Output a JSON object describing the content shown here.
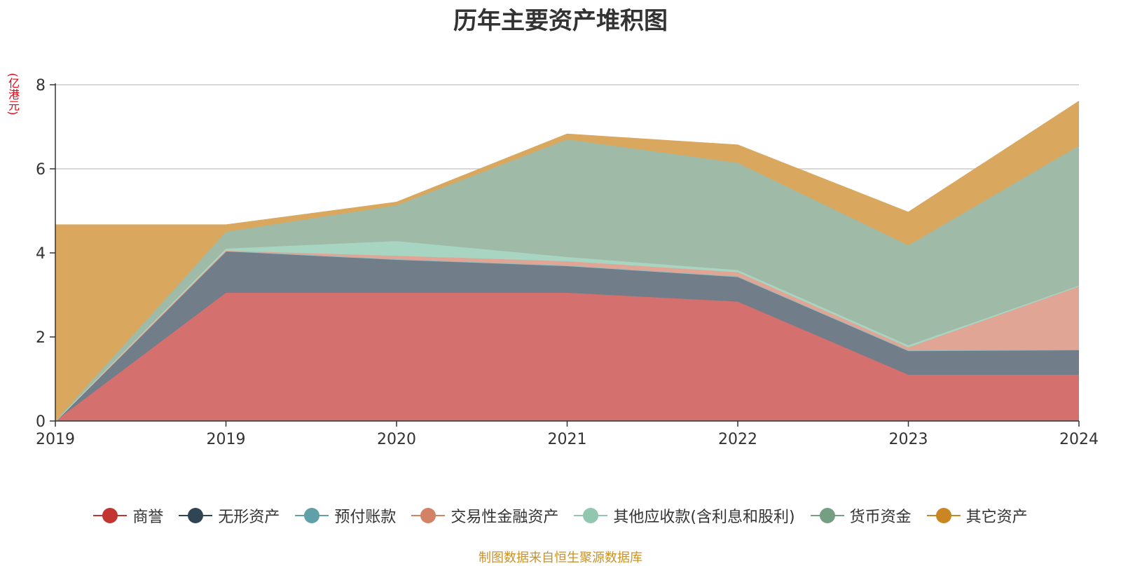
{
  "chart_data": {
    "type": "area",
    "stacked": true,
    "title": "历年主要资产堆积图",
    "y_unit": "(亿港元)",
    "x": [
      "2019",
      "2019",
      "2020",
      "2021",
      "2022",
      "2023",
      "2024"
    ],
    "ylim": [
      0,
      8
    ],
    "yticks": [
      "0",
      "2",
      "4",
      "6",
      "8"
    ],
    "grid": true,
    "legend_position": "bottom",
    "series": [
      {
        "name": "商誉",
        "color": "#c23531",
        "fill": "#d4706e",
        "values": [
          0,
          3.05,
          3.05,
          3.05,
          2.84,
          1.1,
          1.1
        ]
      },
      {
        "name": "无形资产",
        "color": "#2f4554",
        "fill": "#717d88",
        "values": [
          0,
          1.0,
          0.8,
          0.65,
          0.6,
          0.58,
          0.6
        ]
      },
      {
        "name": "预付账款",
        "color": "#61a0a8",
        "fill": "#8fbcc2",
        "values": [
          0,
          0,
          0,
          0,
          0,
          0,
          0
        ]
      },
      {
        "name": "交易性金融资产",
        "color": "#d48265",
        "fill": "#e0a594",
        "values": [
          0,
          0,
          0.08,
          0.1,
          0.1,
          0.07,
          1.5
        ]
      },
      {
        "name": "其他应收款(含利息和股利)",
        "color": "#91c7ae",
        "fill": "#a8d4c2",
        "values": [
          0,
          0.05,
          0.35,
          0.1,
          0.05,
          0.05,
          0.02
        ]
      },
      {
        "name": "货币资金",
        "color": "#749f83",
        "fill": "#9fbba8",
        "values": [
          0,
          0.4,
          0.85,
          2.8,
          2.55,
          2.38,
          3.33
        ]
      },
      {
        "name": "其它资产",
        "color": "#ca8622",
        "fill": "#d9a85e",
        "values": [
          4.66,
          0.16,
          0.07,
          0.12,
          0.42,
          0.78,
          1.05
        ]
      }
    ]
  },
  "source_text": "制图数据来自恒生聚源数据库"
}
